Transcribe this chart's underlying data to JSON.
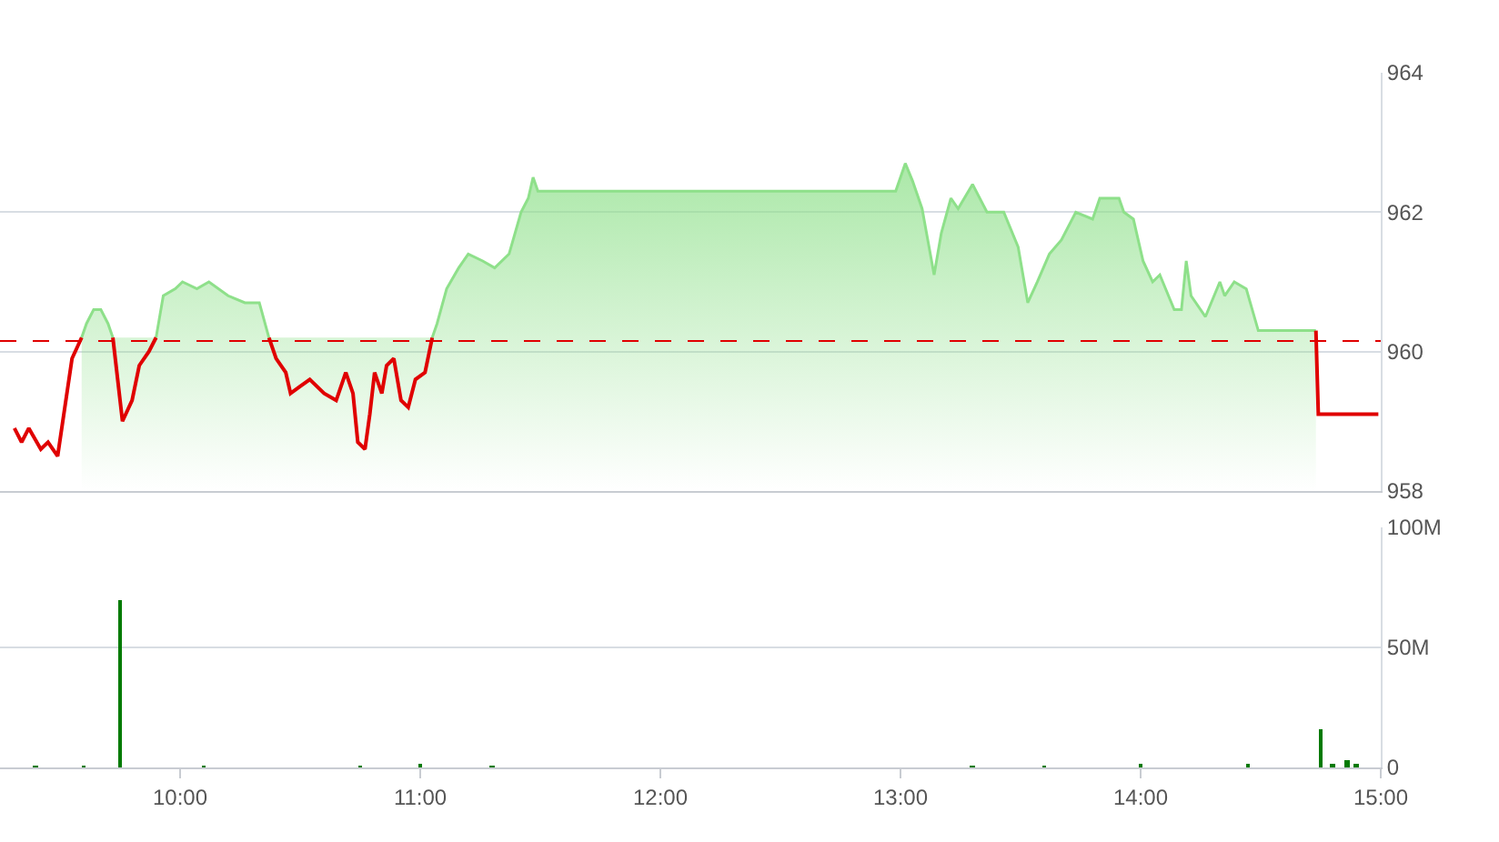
{
  "chart_data": [
    {
      "type": "line",
      "x": [
        9.31,
        9.34,
        9.37,
        9.42,
        9.45,
        9.49,
        9.52,
        9.55,
        9.59,
        9.61,
        9.64,
        9.67,
        9.7,
        9.72,
        9.76,
        9.8,
        9.83,
        9.87,
        9.9,
        9.93,
        9.98,
        10.01,
        10.07,
        10.12,
        10.2,
        10.27,
        10.33,
        10.37,
        10.4,
        10.44,
        10.46,
        10.5,
        10.54,
        10.6,
        10.65,
        10.69,
        10.72,
        10.74,
        10.77,
        10.79,
        10.81,
        10.84,
        10.86,
        10.89,
        10.92,
        10.95,
        10.98,
        11.02,
        11.05,
        11.07,
        11.11,
        11.16,
        11.2,
        11.26,
        11.31,
        11.37,
        11.42,
        11.45,
        11.47,
        11.49,
        12.98,
        13.02,
        13.05,
        13.09,
        13.14,
        13.17,
        13.21,
        13.24,
        13.3,
        13.36,
        13.43,
        13.49,
        13.53,
        13.57,
        13.62,
        13.67,
        13.73,
        13.8,
        13.83,
        13.87,
        13.91,
        13.93,
        13.97,
        14.01,
        14.05,
        14.08,
        14.14,
        14.17,
        14.19,
        14.21,
        14.27,
        14.33,
        14.35,
        14.39,
        14.44,
        14.49,
        14.73,
        14.74,
        14.99
      ],
      "series": [
        {
          "type": "area",
          "color": "#8ee08a",
          "values": [
            null,
            null,
            null,
            null,
            null,
            null,
            null,
            null,
            960.2,
            960.4,
            960.6,
            960.6,
            960.4,
            960.2,
            null,
            null,
            null,
            null,
            960.2,
            960.8,
            960.9,
            961.0,
            960.9,
            961.0,
            960.8,
            960.7,
            960.7,
            960.2,
            null,
            null,
            null,
            null,
            null,
            null,
            null,
            null,
            null,
            null,
            null,
            null,
            null,
            null,
            null,
            null,
            null,
            null,
            null,
            null,
            960.2,
            960.4,
            960.9,
            961.2,
            961.4,
            961.3,
            961.2,
            961.4,
            962.0,
            962.2,
            962.5,
            962.3,
            962.3,
            962.7,
            962.45,
            962.05,
            961.1,
            961.7,
            962.2,
            962.05,
            962.4,
            962.0,
            962.0,
            961.5,
            960.7,
            961.0,
            961.4,
            961.6,
            962.0,
            961.9,
            962.2,
            962.2,
            962.2,
            962.0,
            961.9,
            961.3,
            961.0,
            961.1,
            960.6,
            960.6,
            961.3,
            960.8,
            960.5,
            961.0,
            960.8,
            961.0,
            960.9,
            960.3,
            960.3,
            null,
            null
          ]
        },
        {
          "type": "line",
          "color": "#e00000",
          "values": [
            958.9,
            958.7,
            958.9,
            958.6,
            958.7,
            958.5,
            959.2,
            959.9,
            960.2,
            null,
            null,
            null,
            null,
            960.2,
            959.0,
            959.3,
            959.8,
            960.0,
            960.2,
            null,
            null,
            null,
            null,
            null,
            null,
            null,
            null,
            960.2,
            959.9,
            959.7,
            959.4,
            959.5,
            959.6,
            959.4,
            959.3,
            959.7,
            959.4,
            958.7,
            958.6,
            959.1,
            959.7,
            959.4,
            959.8,
            959.9,
            959.3,
            959.2,
            959.6,
            959.7,
            960.2,
            null,
            null,
            null,
            null,
            null,
            null,
            null,
            null,
            null,
            null,
            null,
            null,
            null,
            null,
            null,
            null,
            null,
            null,
            null,
            null,
            null,
            null,
            null,
            null,
            null,
            null,
            null,
            null,
            null,
            null,
            null,
            null,
            null,
            null,
            null,
            null,
            null,
            null,
            null,
            null,
            null,
            null,
            null,
            null,
            null,
            null,
            null,
            960.3,
            959.1,
            959.1
          ]
        }
      ],
      "xlim": [
        9.25,
        15.0
      ],
      "ylim": [
        958,
        964
      ],
      "yticks": [
        958,
        960,
        962,
        964
      ],
      "grid": "y",
      "tick_labels": "y",
      "ref_lines": [
        {
          "axis": "y",
          "value": 960.15,
          "color": "#e00000",
          "line_style": "dashed"
        }
      ]
    },
    {
      "type": "bar",
      "color": "#007a00",
      "x": [
        9.4,
        9.6,
        9.75,
        10.1,
        10.75,
        11.0,
        11.3,
        13.3,
        13.6,
        14.0,
        14.45,
        14.75,
        14.8,
        14.86,
        14.9
      ],
      "values": [
        1,
        1,
        70,
        1,
        1,
        2,
        1,
        1,
        1,
        1.5,
        2,
        16,
        2,
        3,
        2
      ],
      "xlim": [
        9.25,
        15.0
      ],
      "xticks": [
        {
          "value": 10,
          "label": "10:00"
        },
        {
          "value": 11,
          "label": "11:00"
        },
        {
          "value": 12,
          "label": "12:00"
        },
        {
          "value": 13,
          "label": "13:00"
        },
        {
          "value": 14,
          "label": "14:00"
        },
        {
          "value": 15,
          "label": "15:00"
        }
      ],
      "ylim": [
        0,
        100
      ],
      "yticks": [
        {
          "value": 0,
          "label": "0"
        },
        {
          "value": 50,
          "label": "50M"
        },
        {
          "value": 100,
          "label": "100M"
        }
      ],
      "grid": "y"
    }
  ]
}
